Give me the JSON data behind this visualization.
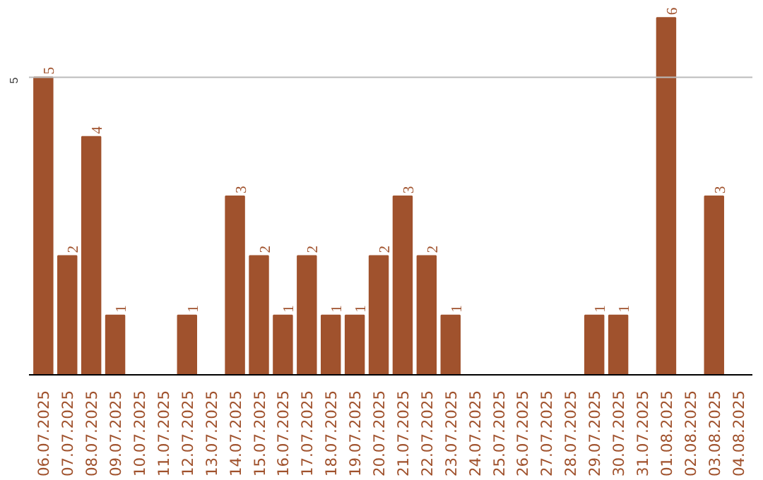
{
  "chart_data": {
    "type": "bar",
    "categories": [
      "06.07.2025",
      "07.07.2025",
      "08.07.2025",
      "09.07.2025",
      "10.07.2025",
      "11.07.2025",
      "12.07.2025",
      "13.07.2025",
      "14.07.2025",
      "15.07.2025",
      "16.07.2025",
      "17.07.2025",
      "18.07.2025",
      "19.07.2025",
      "20.07.2025",
      "21.07.2025",
      "22.07.2025",
      "23.07.2025",
      "24.07.2025",
      "25.07.2025",
      "26.07.2025",
      "27.07.2025",
      "28.07.2025",
      "29.07.2025",
      "30.07.2025",
      "31.07.2025",
      "01.08.2025",
      "02.08.2025",
      "03.08.2025",
      "04.08.2025"
    ],
    "values": [
      5,
      2,
      4,
      1,
      0,
      0,
      1,
      0,
      3,
      2,
      1,
      2,
      1,
      1,
      2,
      3,
      2,
      1,
      0,
      0,
      0,
      0,
      0,
      1,
      1,
      0,
      6,
      0,
      3,
      0
    ],
    "value_labels": [
      "5",
      "2",
      "4",
      "1",
      null,
      null,
      "1",
      null,
      "3",
      "2",
      "1",
      "2",
      "1",
      "1",
      "2",
      "3",
      "2",
      "1",
      null,
      null,
      null,
      null,
      null,
      "1",
      "1",
      null,
      "6",
      null,
      "3",
      null
    ],
    "color": "#a0522d",
    "ref_lines": [
      {
        "axis": "y",
        "value": 5,
        "label": "5",
        "color": "#bbbbbb"
      }
    ]
  }
}
